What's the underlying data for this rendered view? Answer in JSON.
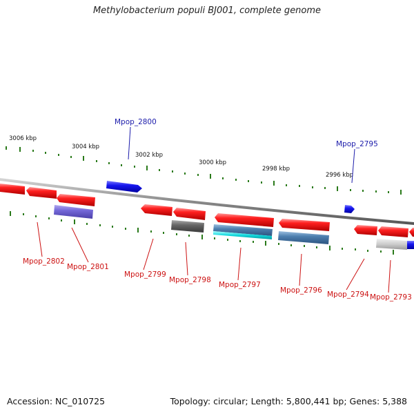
{
  "title": "Methylobacterium populi BJ001, complete genome",
  "footer": {
    "accession": "Accession: NC_010725",
    "topology": "Topology: circular; Length: 5,800,441 bp; Genes: 5,388"
  },
  "scale_labels": [
    "3006 kbp",
    "3004 kbp",
    "3002 kbp",
    "3000 kbp",
    "2998 kbp",
    "2996 kbp"
  ],
  "gene_labels": [
    {
      "text": "Mpop_2800",
      "color": "#1a1aaa"
    },
    {
      "text": "Mpop_2795",
      "color": "#1a1aaa"
    },
    {
      "text": "Mpop_2802",
      "color": "#cc1111"
    },
    {
      "text": "Mpop_2801",
      "color": "#cc1111"
    },
    {
      "text": "Mpop_2799",
      "color": "#cc1111"
    },
    {
      "text": "Mpop_2798",
      "color": "#cc1111"
    },
    {
      "text": "Mpop_2797",
      "color": "#cc1111"
    },
    {
      "text": "Mpop_2796",
      "color": "#cc1111"
    },
    {
      "text": "Mpop_2794",
      "color": "#cc1111"
    },
    {
      "text": "Mpop_2793",
      "color": "#cc1111"
    }
  ],
  "colors": {
    "forward_gene": "#1010ee",
    "reverse_gene": "#ee1111",
    "backbone": "#888888",
    "tick": "#2a7a1a"
  }
}
